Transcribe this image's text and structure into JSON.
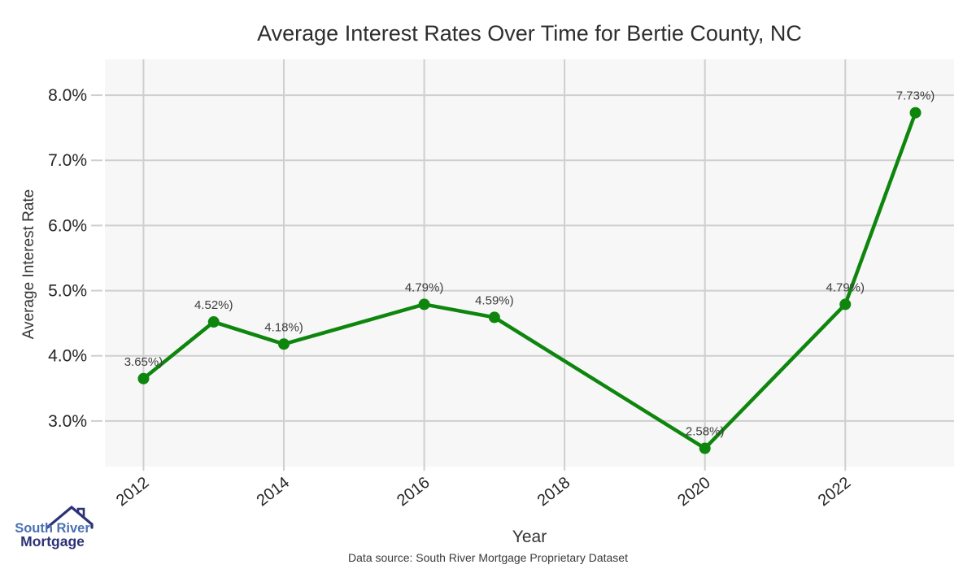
{
  "chart_data": {
    "type": "line",
    "title": "Average Interest Rates Over Time for Bertie County, NC",
    "xlabel": "Year",
    "ylabel": "Average Interest Rate",
    "caption": "Data source: South River Mortgage Proprietary Dataset",
    "x": [
      2012,
      2013,
      2014,
      2016,
      2017,
      2020,
      2022,
      2023
    ],
    "y": [
      3.65,
      4.52,
      4.18,
      4.79,
      4.59,
      2.58,
      4.79,
      7.73
    ],
    "point_labels": [
      "3.65%)",
      "4.52%)",
      "4.18%)",
      "4.79%)",
      "4.59%)",
      "2.58%)",
      "4.79%)",
      "7.73%)"
    ],
    "x_tick_values": [
      2012,
      2014,
      2016,
      2018,
      2020,
      2022
    ],
    "x_tick_labels": [
      "2012",
      "2014",
      "2016",
      "2018",
      "2020",
      "2022"
    ],
    "y_tick_values": [
      3,
      4,
      5,
      6,
      7,
      8
    ],
    "y_tick_labels": [
      "3.0%",
      "4.0%",
      "5.0%",
      "6.0%",
      "7.0%",
      "8.0%"
    ],
    "xlim": [
      2011.45,
      2023.55
    ],
    "ylim": [
      2.3,
      8.55
    ],
    "grid": true,
    "legend": false,
    "colors": {
      "line": "#0e860e",
      "marker": "#0e860e",
      "grid": "#cfcfcf",
      "plot_background": "#f7f7f7",
      "tick_text": "#262626",
      "label_text": "#3c3c3c",
      "title_text": "#2e2e2e"
    }
  },
  "logo": {
    "line1": "South River",
    "line2": "Mortgage",
    "line1_color": "#4a70b2",
    "line2_color": "#2c3276",
    "icon_color": "#2c3276"
  }
}
